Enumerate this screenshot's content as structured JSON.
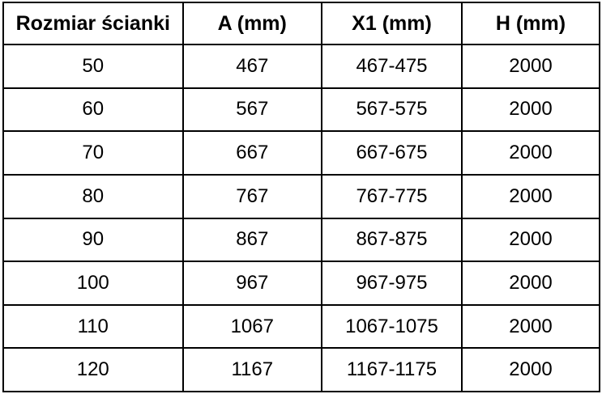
{
  "table": {
    "columns": [
      "Rozmiar ścianki",
      "A (mm)",
      "X1 (mm)",
      "H (mm)"
    ],
    "rows": [
      [
        "50",
        "467",
        "467-475",
        "2000"
      ],
      [
        "60",
        "567",
        "567-575",
        "2000"
      ],
      [
        "70",
        "667",
        "667-675",
        "2000"
      ],
      [
        "80",
        "767",
        "767-775",
        "2000"
      ],
      [
        "90",
        "867",
        "867-875",
        "2000"
      ],
      [
        "100",
        "967",
        "967-975",
        "2000"
      ],
      [
        "110",
        "1067",
        "1067-1075",
        "2000"
      ],
      [
        "120",
        "1167",
        "1167-1175",
        "2000"
      ]
    ],
    "colors": {
      "border": "#000000",
      "text": "#000000",
      "background": "#ffffff"
    }
  }
}
